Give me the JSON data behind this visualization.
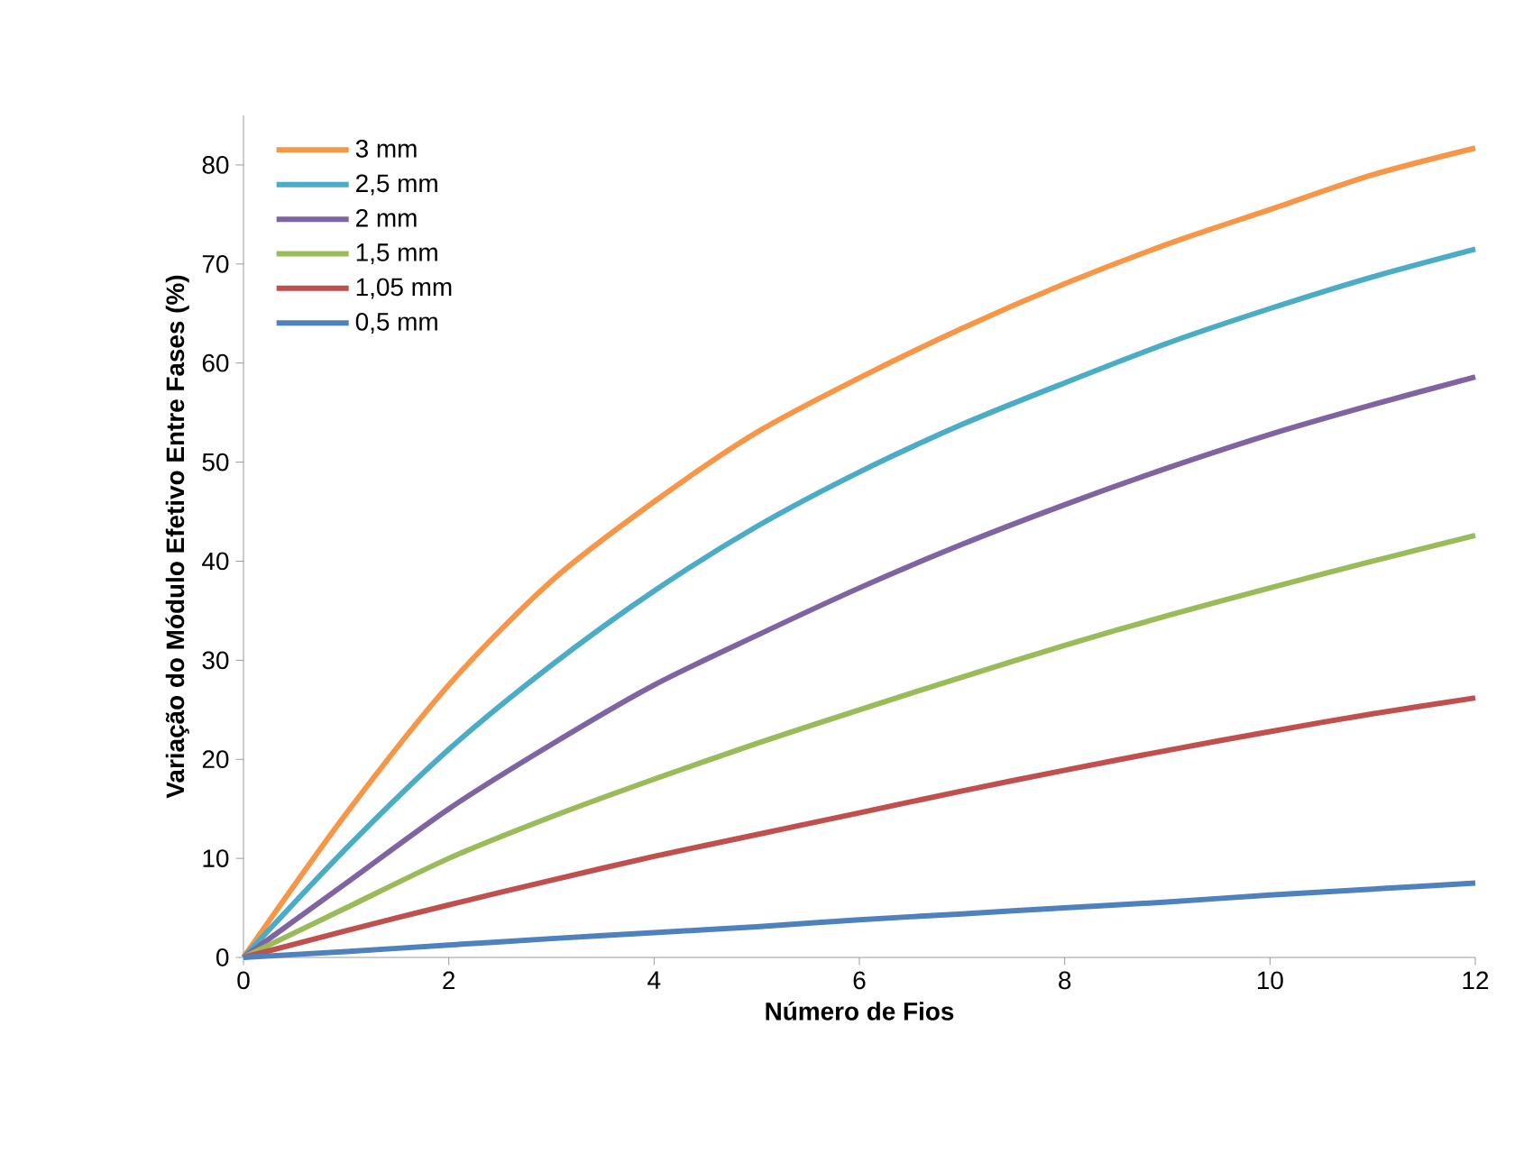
{
  "chart_data": {
    "type": "line",
    "xlabel": "Número de Fios",
    "ylabel": "Variação do Módulo Efetivo Entre Fases (%)",
    "x": [
      0,
      1,
      2,
      3,
      4,
      5,
      6,
      7,
      8,
      9,
      10,
      11,
      12
    ],
    "xlim": [
      0,
      12
    ],
    "xticks": [
      0,
      2,
      4,
      6,
      8,
      10,
      12
    ],
    "ylim": [
      0,
      85
    ],
    "yticks": [
      0,
      10,
      20,
      30,
      40,
      50,
      60,
      70,
      80
    ],
    "legend": "top left",
    "series": [
      {
        "name": "3 mm",
        "color": "#f79646",
        "values": [
          0,
          14.5,
          27.5,
          38,
          46,
          53,
          58.5,
          63.5,
          68,
          72,
          75.5,
          79,
          81.7
        ]
      },
      {
        "name": "2,5 mm",
        "color": "#4bacc6",
        "values": [
          0,
          11,
          21,
          29.5,
          37,
          43.5,
          49,
          53.8,
          58,
          62,
          65.5,
          68.7,
          71.5
        ]
      },
      {
        "name": "2 mm",
        "color": "#8064a2",
        "values": [
          0,
          7.5,
          15,
          21.5,
          27.5,
          32.5,
          37.3,
          41.7,
          45.7,
          49.4,
          52.8,
          55.8,
          58.6
        ]
      },
      {
        "name": "1,5 mm",
        "color": "#9bbb59",
        "values": [
          0,
          5,
          10,
          14.2,
          18,
          21.6,
          25,
          28.3,
          31.5,
          34.5,
          37.3,
          40,
          42.6
        ]
      },
      {
        "name": "1,05 mm",
        "color": "#c0504d",
        "values": [
          0,
          2.7,
          5.3,
          7.8,
          10.2,
          12.4,
          14.6,
          16.8,
          18.9,
          20.9,
          22.8,
          24.6,
          26.2
        ]
      },
      {
        "name": "0,5 mm",
        "color": "#4f81bd",
        "values": [
          0,
          0.6,
          1.25,
          1.9,
          2.5,
          3.1,
          3.8,
          4.4,
          5,
          5.6,
          6.3,
          6.9,
          7.5
        ]
      }
    ]
  }
}
